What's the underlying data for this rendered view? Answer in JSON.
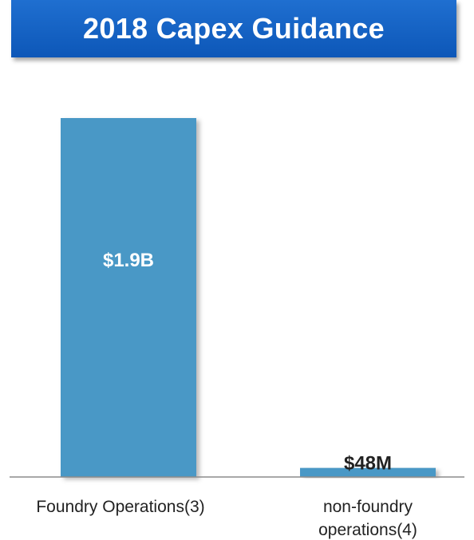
{
  "title": "2018 Capex Guidance",
  "colors": {
    "title_bg": "#1565c6",
    "title_text": "#ffffff",
    "bar": "#4a98c6",
    "axis": "#8c8c8c"
  },
  "chart_data": {
    "type": "bar",
    "title": "2018 Capex Guidance",
    "categories": [
      [
        "Foundry Operations(3)"
      ],
      [
        "non-foundry",
        "operations(4)"
      ]
    ],
    "values": [
      1900,
      48
    ],
    "value_unit": "$M",
    "data_labels": [
      "$1.9B",
      "$48M"
    ],
    "xlabel": "",
    "ylabel": "",
    "ylim": [
      0,
      2000
    ],
    "grid": false,
    "legend": "none"
  }
}
